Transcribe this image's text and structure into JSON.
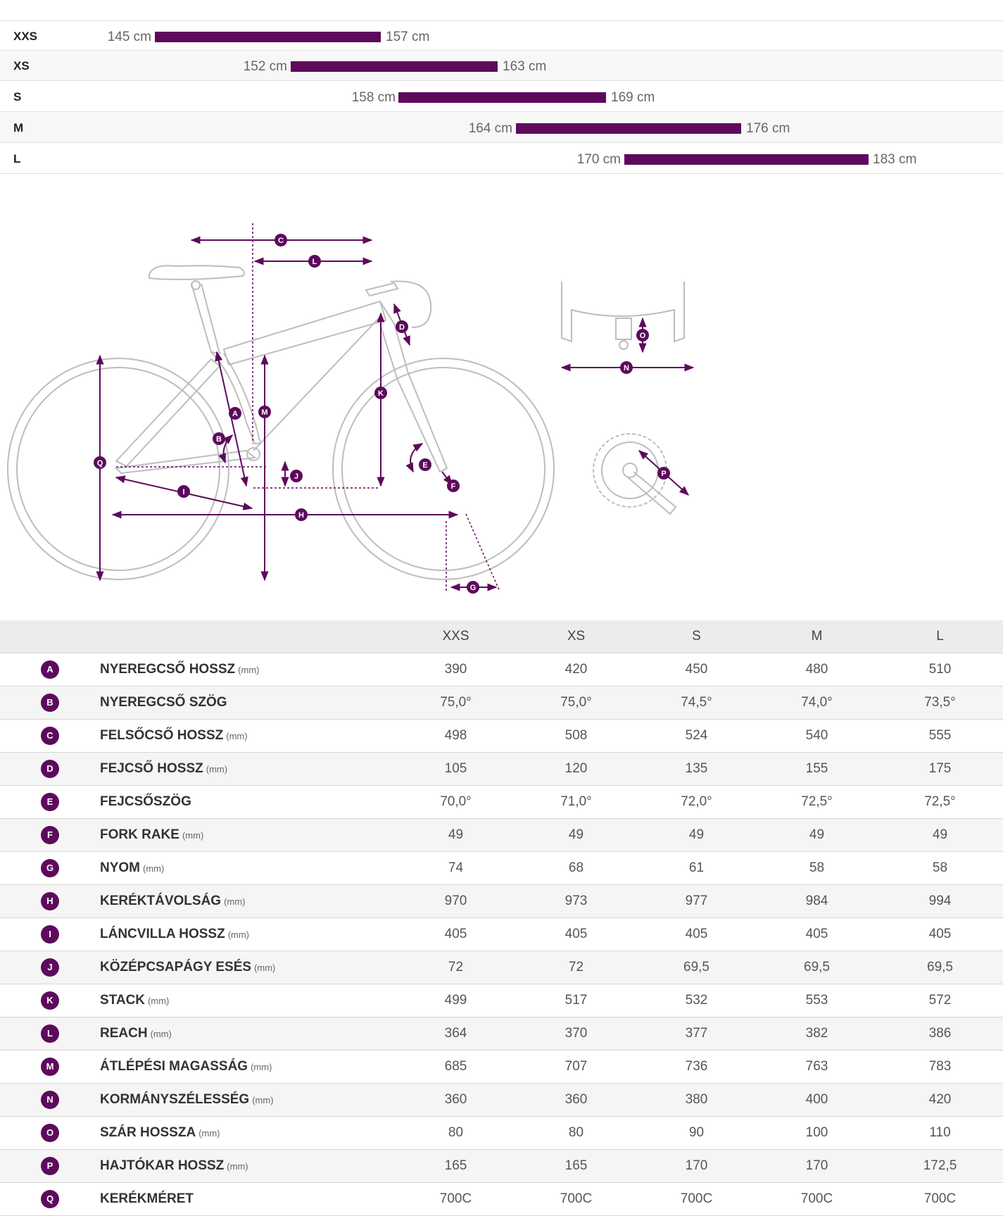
{
  "sizes": [
    {
      "name": "XXS",
      "min": "145 cm",
      "max": "157 cm",
      "min_cm": 145,
      "max_cm": 157
    },
    {
      "name": "XS",
      "min": "152 cm",
      "max": "163 cm",
      "min_cm": 152,
      "max_cm": 163
    },
    {
      "name": "S",
      "min": "158 cm",
      "max": "169 cm",
      "min_cm": 158,
      "max_cm": 169
    },
    {
      "name": "M",
      "min": "164 cm",
      "max": "176 cm",
      "min_cm": 164,
      "max_cm": 176
    },
    {
      "name": "L",
      "min": "170 cm",
      "max": "183 cm",
      "min_cm": 170,
      "max_cm": 183
    }
  ],
  "diagram": {
    "markers": [
      "A",
      "B",
      "C",
      "D",
      "E",
      "F",
      "G",
      "H",
      "I",
      "J",
      "K",
      "L",
      "M",
      "N",
      "O",
      "P",
      "Q"
    ]
  },
  "table": {
    "headers": [
      "XXS",
      "XS",
      "S",
      "M",
      "L"
    ],
    "rows": [
      {
        "badge": "A",
        "name": "NYEREGCSŐ HOSSZ",
        "unit": "(mm)",
        "values": [
          "390",
          "420",
          "450",
          "480",
          "510"
        ]
      },
      {
        "badge": "B",
        "name": "NYEREGCSŐ SZÖG",
        "unit": "",
        "values": [
          "75,0°",
          "75,0°",
          "74,5°",
          "74,0°",
          "73,5°"
        ]
      },
      {
        "badge": "C",
        "name": "FELSŐCSŐ HOSSZ",
        "unit": "(mm)",
        "values": [
          "498",
          "508",
          "524",
          "540",
          "555"
        ]
      },
      {
        "badge": "D",
        "name": "FEJCSŐ HOSSZ",
        "unit": "(mm)",
        "values": [
          "105",
          "120",
          "135",
          "155",
          "175"
        ]
      },
      {
        "badge": "E",
        "name": "FEJCSŐSZÖG",
        "unit": "",
        "values": [
          "70,0°",
          "71,0°",
          "72,0°",
          "72,5°",
          "72,5°"
        ]
      },
      {
        "badge": "F",
        "name": "FORK RAKE",
        "unit": "(mm)",
        "values": [
          "49",
          "49",
          "49",
          "49",
          "49"
        ]
      },
      {
        "badge": "G",
        "name": "NYOM",
        "unit": "(mm)",
        "values": [
          "74",
          "68",
          "61",
          "58",
          "58"
        ]
      },
      {
        "badge": "H",
        "name": "KERÉKTÁVOLSÁG",
        "unit": "(mm)",
        "values": [
          "970",
          "973",
          "977",
          "984",
          "994"
        ]
      },
      {
        "badge": "I",
        "name": "LÁNCVILLA HOSSZ",
        "unit": "(mm)",
        "values": [
          "405",
          "405",
          "405",
          "405",
          "405"
        ]
      },
      {
        "badge": "J",
        "name": "KÖZÉPCSAPÁGY ESÉS",
        "unit": "(mm)",
        "values": [
          "72",
          "72",
          "69,5",
          "69,5",
          "69,5"
        ]
      },
      {
        "badge": "K",
        "name": "STACK",
        "unit": "(mm)",
        "values": [
          "499",
          "517",
          "532",
          "553",
          "572"
        ]
      },
      {
        "badge": "L",
        "name": "REACH",
        "unit": "(mm)",
        "values": [
          "364",
          "370",
          "377",
          "382",
          "386"
        ]
      },
      {
        "badge": "M",
        "name": "ÁTLÉPÉSI MAGASSÁG",
        "unit": "(mm)",
        "values": [
          "685",
          "707",
          "736",
          "763",
          "783"
        ]
      },
      {
        "badge": "N",
        "name": "KORMÁNYSZÉLESSÉG",
        "unit": "(mm)",
        "values": [
          "360",
          "360",
          "380",
          "400",
          "420"
        ]
      },
      {
        "badge": "O",
        "name": "SZÁR HOSSZA",
        "unit": "(mm)",
        "values": [
          "80",
          "80",
          "90",
          "100",
          "110"
        ]
      },
      {
        "badge": "P",
        "name": "HAJTÓKAR HOSSZ",
        "unit": "(mm)",
        "values": [
          "165",
          "165",
          "170",
          "170",
          "172,5"
        ]
      },
      {
        "badge": "Q",
        "name": "KERÉKMÉRET",
        "unit": "",
        "values": [
          "700C",
          "700C",
          "700C",
          "700C",
          "700C"
        ]
      }
    ]
  },
  "colors": {
    "accent": "#5d0a5c",
    "line": "#bdbdbd"
  }
}
